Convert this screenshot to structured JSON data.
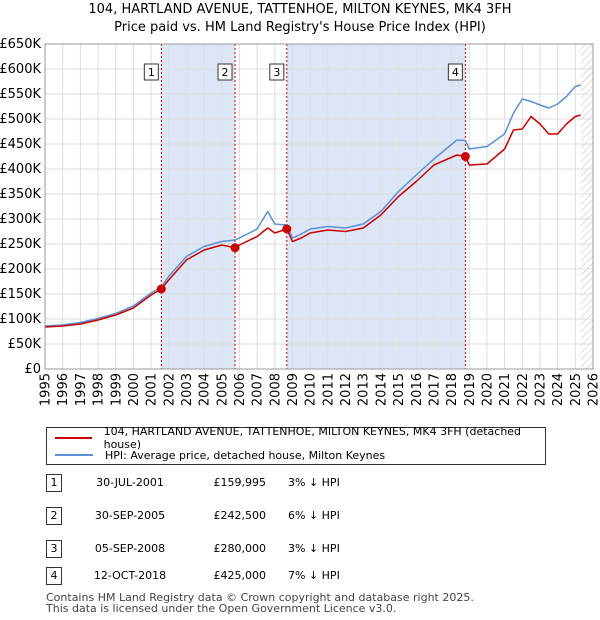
{
  "title_line1": "104, HARTLAND AVENUE, TATTENHOE, MILTON KEYNES, MK4 3FH",
  "title_line2": "Price paid vs. HM Land Registry's House Price Index (HPI)",
  "colors": {
    "property": "#cc0000",
    "hpi": "#5b8fd6",
    "shade": "#dde6f7",
    "vline": "#cc0000",
    "grid": "#dddddd"
  },
  "chart_data": {
    "type": "line",
    "title": "Price paid vs. HM Land Registry's House Price Index (HPI)",
    "xlim": [
      1995,
      2026
    ],
    "ylim": [
      0,
      650000
    ],
    "x_ticks": [
      1995,
      1996,
      1997,
      1998,
      1999,
      2000,
      2001,
      2002,
      2003,
      2004,
      2005,
      2006,
      2007,
      2008,
      2009,
      2010,
      2011,
      2012,
      2013,
      2014,
      2015,
      2016,
      2017,
      2018,
      2019,
      2020,
      2021,
      2022,
      2023,
      2024,
      2025,
      2026
    ],
    "y_ticks": [
      {
        "v": 0,
        "label": "£0"
      },
      {
        "v": 50000,
        "label": "£50K"
      },
      {
        "v": 100000,
        "label": "£100K"
      },
      {
        "v": 150000,
        "label": "£150K"
      },
      {
        "v": 200000,
        "label": "£200K"
      },
      {
        "v": 250000,
        "label": "£250K"
      },
      {
        "v": 300000,
        "label": "£300K"
      },
      {
        "v": 350000,
        "label": "£350K"
      },
      {
        "v": 400000,
        "label": "£400K"
      },
      {
        "v": 450000,
        "label": "£450K"
      },
      {
        "v": 500000,
        "label": "£500K"
      },
      {
        "v": 550000,
        "label": "£550K"
      },
      {
        "v": 600000,
        "label": "£600K"
      },
      {
        "v": 650000,
        "label": "£650K"
      }
    ],
    "shaded_ranges": [
      [
        2001.58,
        2005.75
      ],
      [
        2008.68,
        2018.78
      ]
    ],
    "future_hatch_from": 2025.3,
    "series": [
      {
        "name": "104, HARTLAND AVENUE, TATTENHOE, MILTON KEYNES, MK4 3FH (detached house)",
        "color": "#cc0000",
        "x": [
          1995,
          1996,
          1997,
          1998,
          1999,
          2000,
          2001.0,
          2001.58,
          2002,
          2003,
          2004,
          2005.0,
          2005.75,
          2006,
          2007,
          2007.6,
          2008,
          2008.68,
          2009,
          2009.5,
          2010,
          2011,
          2012,
          2013,
          2014,
          2015,
          2016,
          2017,
          2018.3,
          2018.78,
          2019,
          2020,
          2021,
          2021.5,
          2022,
          2022.5,
          2023,
          2023.5,
          2024,
          2024.5,
          2025,
          2025.3
        ],
        "y": [
          84000,
          86000,
          90000,
          98000,
          108000,
          122000,
          148000,
          159995,
          178000,
          218000,
          238000,
          248000,
          242500,
          248000,
          265000,
          282000,
          272000,
          280000,
          255000,
          262000,
          272000,
          278000,
          275000,
          282000,
          308000,
          345000,
          375000,
          408000,
          428000,
          425000,
          408000,
          410000,
          440000,
          478000,
          480000,
          505000,
          490000,
          470000,
          470000,
          490000,
          505000,
          508000
        ]
      },
      {
        "name": "HPI: Average price, detached house, Milton Keynes",
        "color": "#5b8fd6",
        "x": [
          1995,
          1996,
          1997,
          1998,
          1999,
          2000,
          2001.0,
          2001.58,
          2002,
          2003,
          2004,
          2005.0,
          2005.75,
          2006,
          2007,
          2007.6,
          2008,
          2008.68,
          2009,
          2009.5,
          2010,
          2011,
          2012,
          2013,
          2014,
          2015,
          2016,
          2017,
          2018.3,
          2018.78,
          2019,
          2020,
          2021,
          2021.5,
          2022,
          2022.5,
          2023,
          2023.5,
          2024,
          2024.5,
          2025,
          2025.3
        ],
        "y": [
          86000,
          88000,
          93000,
          101000,
          111000,
          126000,
          152000,
          164000,
          185000,
          225000,
          245000,
          255000,
          258000,
          262000,
          280000,
          315000,
          290000,
          288000,
          262000,
          270000,
          280000,
          285000,
          282000,
          290000,
          315000,
          355000,
          388000,
          420000,
          458000,
          457000,
          440000,
          445000,
          470000,
          512000,
          540000,
          535000,
          528000,
          522000,
          530000,
          545000,
          565000,
          568000
        ]
      }
    ],
    "sales": [
      {
        "n": "1",
        "x": 2001.58,
        "y": 159995
      },
      {
        "n": "2",
        "x": 2005.75,
        "y": 242500
      },
      {
        "n": "3",
        "x": 2008.68,
        "y": 280000
      },
      {
        "n": "4",
        "x": 2018.78,
        "y": 425000
      }
    ]
  },
  "legend": {
    "property": "104, HARTLAND AVENUE, TATTENHOE, MILTON KEYNES, MK4 3FH (detached house)",
    "hpi": "HPI: Average price, detached house, Milton Keynes"
  },
  "table": [
    {
      "num": "1",
      "date": "30-JUL-2001",
      "price": "£159,995",
      "hpi": "3% ↓ HPI"
    },
    {
      "num": "2",
      "date": "30-SEP-2005",
      "price": "£242,500",
      "hpi": "6% ↓ HPI"
    },
    {
      "num": "3",
      "date": "05-SEP-2008",
      "price": "£280,000",
      "hpi": "3% ↓ HPI"
    },
    {
      "num": "4",
      "date": "12-OCT-2018",
      "price": "£425,000",
      "hpi": "7% ↓ HPI"
    }
  ],
  "footer_line1": "Contains HM Land Registry data © Crown copyright and database right 2025.",
  "footer_line2": "This data is licensed under the Open Government Licence v3.0."
}
